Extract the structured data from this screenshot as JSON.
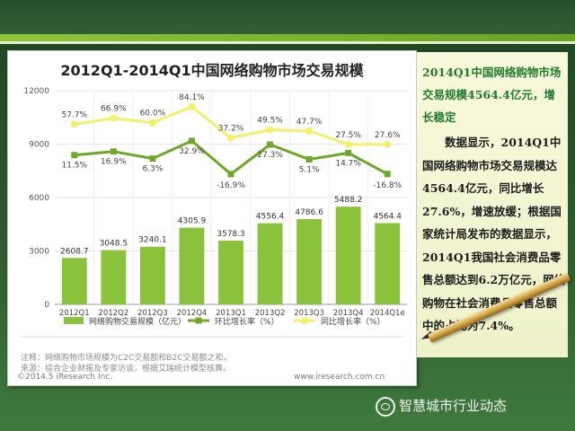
{
  "chart_data": {
    "type": "bar",
    "title": "2012Q1-2014Q1中国网络购物市场交易规模",
    "categories": [
      "2012Q1",
      "2012Q2",
      "2012Q3",
      "2012Q4",
      "2013Q1",
      "2013Q2",
      "2013Q3",
      "2013Q4",
      "2014Q1e"
    ],
    "bar_series": {
      "name": "网络购物交易规模（亿元）",
      "values": [
        2608.7,
        3048.5,
        3240.1,
        4305.9,
        3578.3,
        4556.4,
        4786.6,
        5488.2,
        4564.4
      ],
      "labels": [
        "2608.7",
        "3048.5",
        "3240.1",
        "4305.9",
        "3578.3",
        "4556.4",
        "4786.6",
        "5488.2",
        "4564.4"
      ]
    },
    "line_series": [
      {
        "name": "环比增长率（%）",
        "values": [
          11.5,
          16.9,
          6.3,
          32.9,
          -16.9,
          27.3,
          5.1,
          14.7,
          -16.8
        ],
        "labels": [
          "11.5%",
          "16.9%",
          "6.3%",
          "32.9%",
          "-16.9%",
          "27.3%",
          "5.1%",
          "14.7%",
          "-16.8%"
        ]
      },
      {
        "name": "同比增长率（%）",
        "values": [
          57.7,
          66.9,
          60.0,
          84.1,
          37.2,
          49.5,
          47.7,
          27.5,
          27.6
        ],
        "labels": [
          "57.7%",
          "66.9%",
          "60.0%",
          "84.1%",
          "37.2%",
          "49.5%",
          "47.7%",
          "27.5%",
          "27.6%"
        ]
      }
    ],
    "y_ticks": [
      "12000",
      "9000",
      "6000",
      "3000",
      "0"
    ],
    "ylim": [
      0,
      12000
    ],
    "grid": true,
    "legend_position": "bottom",
    "colors": {
      "bar": "#8bc23c",
      "mom": "#6ea82a",
      "yoy": "#f3f06a",
      "bar_label": "#333333"
    }
  },
  "footnotes": {
    "note": "注释：网络购物市场规模为C2C交易额和B2C交易额之和。",
    "source": "来源：综合企业财报及专家访谈，根据艾瑞统计模型核算。"
  },
  "brand": {
    "copyright": "©2014.5 iResearch Inc.",
    "website": "www.iresearch.com.cn"
  },
  "panel": {
    "headline": "2014Q1中国网络购物市场交易规模4564.4亿元，增长稳定",
    "body": "数据显示，2014Q1中国网络购物市场交易规模达4564.4亿元，同比增长27.6%，增速放缓；根据国家统计局发布的数据显示，2014Q1我国社会消费品零售总额达到6.2万亿元，网络购物在社会消费品零售总额中的占比为7.4%。"
  },
  "watermark": {
    "text": "智慧城市行业动态",
    "icon": "wechat-icon"
  }
}
